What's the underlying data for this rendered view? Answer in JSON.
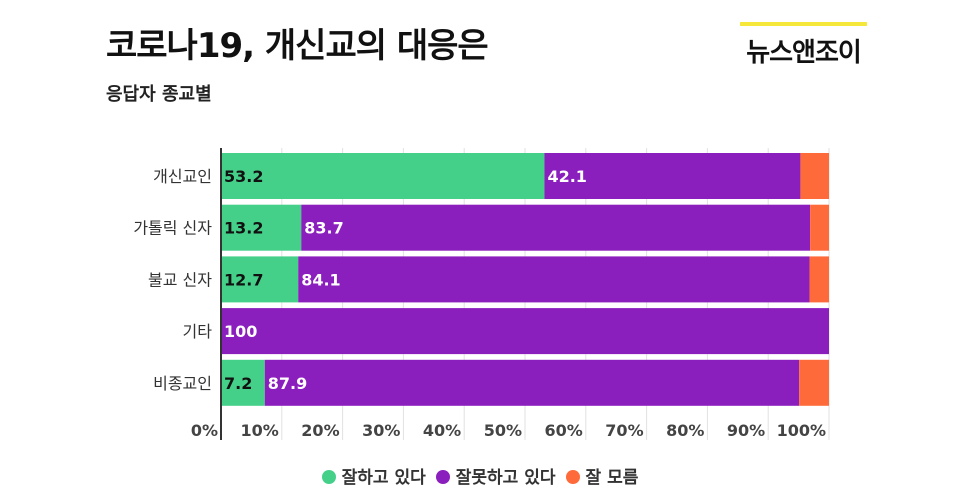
{
  "header": {
    "title": "코로나19, 개신교의 대응은",
    "subtitle": "응답자 종교별",
    "logo": "뉴스앤조이"
  },
  "colors": {
    "good": "#45d08a",
    "bad": "#8b1fbd",
    "unknown": "#ff6a3a",
    "logo_bar": "#f5e83a"
  },
  "chart_data": {
    "type": "bar",
    "orientation": "horizontal",
    "stacked": true,
    "title": "코로나19, 개신교의 대응은",
    "subtitle": "응답자 종교별",
    "categories": [
      "개신교인",
      "가톨릭 신자",
      "불교 신자",
      "기타",
      "비종교인"
    ],
    "series": [
      {
        "name": "잘하고 있다",
        "values": [
          53.2,
          13.2,
          12.7,
          0,
          7.2
        ]
      },
      {
        "name": "잘못하고 있다",
        "values": [
          42.1,
          83.7,
          84.1,
          100,
          87.9
        ]
      },
      {
        "name": "잘 모름",
        "values": [
          4.7,
          3.1,
          3.2,
          0,
          4.9
        ]
      }
    ],
    "labels": [
      [
        "53.2",
        "42.1"
      ],
      [
        "13.2",
        "83.7"
      ],
      [
        "12.7",
        "84.1"
      ],
      [
        "",
        "100"
      ],
      [
        "7.2",
        "87.9"
      ]
    ],
    "xlim": [
      0,
      100
    ],
    "xticks": [
      "0%",
      "10%",
      "20%",
      "30%",
      "40%",
      "50%",
      "60%",
      "70%",
      "80%",
      "90%",
      "100%"
    ],
    "grid": true,
    "legend": "bottom"
  }
}
